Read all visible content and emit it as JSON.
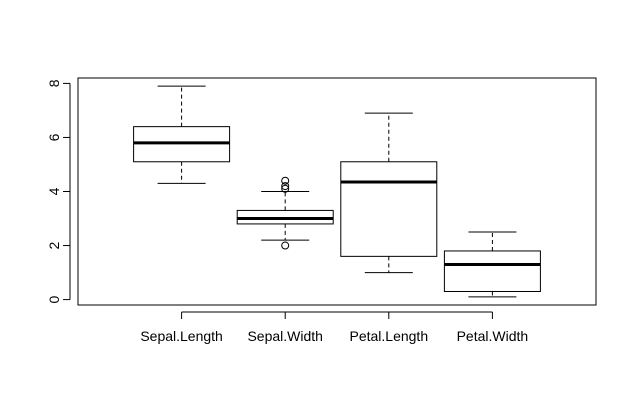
{
  "chart_data": {
    "type": "boxplot",
    "title": "",
    "xlabel": "",
    "ylabel": "",
    "ylim": [
      -0.2,
      8.2
    ],
    "yticks": [
      0,
      2,
      4,
      6,
      8
    ],
    "ytick_labels": [
      "0",
      "2",
      "4",
      "6",
      "8"
    ],
    "grid": false,
    "categories": [
      "Sepal.Length",
      "Sepal.Width",
      "Petal.Length",
      "Petal.Width"
    ],
    "boxes": [
      {
        "whisker_low": 4.3,
        "q1": 5.1,
        "median": 5.8,
        "q3": 6.4,
        "whisker_high": 7.9,
        "outliers": []
      },
      {
        "whisker_low": 2.2,
        "q1": 2.8,
        "median": 3.0,
        "q3": 3.3,
        "whisker_high": 4.0,
        "outliers": [
          4.1,
          4.2,
          4.4,
          2.0
        ]
      },
      {
        "whisker_low": 1.0,
        "q1": 1.6,
        "median": 4.35,
        "q3": 5.1,
        "whisker_high": 6.9,
        "outliers": []
      },
      {
        "whisker_low": 0.1,
        "q1": 0.3,
        "median": 1.3,
        "q3": 1.8,
        "whisker_high": 2.5,
        "outliers": []
      }
    ]
  }
}
